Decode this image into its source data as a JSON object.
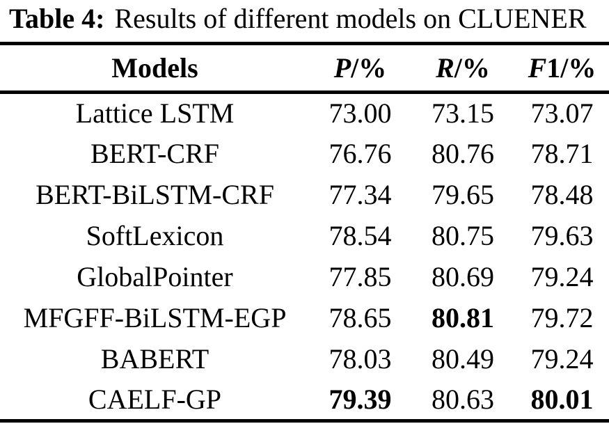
{
  "title": {
    "label": "Table 4:",
    "text": "Results of different models on CLUENER"
  },
  "table": {
    "header": {
      "models": "Models",
      "col_p": {
        "var": "P",
        "unit": "/%"
      },
      "col_r": {
        "var": "R",
        "unit": "/%"
      },
      "col_f1": {
        "var": "F",
        "unit": "1/%"
      }
    },
    "rows": [
      {
        "model": "Lattice LSTM",
        "p": "73.00",
        "r": "73.15",
        "f1": "73.07"
      },
      {
        "model": "BERT-CRF",
        "p": "76.76",
        "r": "80.76",
        "f1": "78.71"
      },
      {
        "model": "BERT-BiLSTM-CRF",
        "p": "77.34",
        "r": "79.65",
        "f1": "78.48"
      },
      {
        "model": "SoftLexicon",
        "p": "78.54",
        "r": "80.75",
        "f1": "79.63"
      },
      {
        "model": "GlobalPointer",
        "p": "77.85",
        "r": "80.69",
        "f1": "79.24"
      },
      {
        "model": "MFGFF-BiLSTM-EGP",
        "p": "78.65",
        "r": "80.81",
        "f1": "79.72"
      },
      {
        "model": "BABERT",
        "p": "78.03",
        "r": "80.49",
        "f1": "79.24"
      },
      {
        "model": "CAELF-GP",
        "p": "79.39",
        "r": "80.63",
        "f1": "80.01"
      }
    ],
    "bold_cells": [
      {
        "row": 5,
        "column": "r"
      },
      {
        "row": 7,
        "column": "p"
      },
      {
        "row": 7,
        "column": "f1"
      }
    ],
    "colors": {
      "text": "#000000",
      "background": "#ffffff",
      "rule": "#000000"
    }
  }
}
